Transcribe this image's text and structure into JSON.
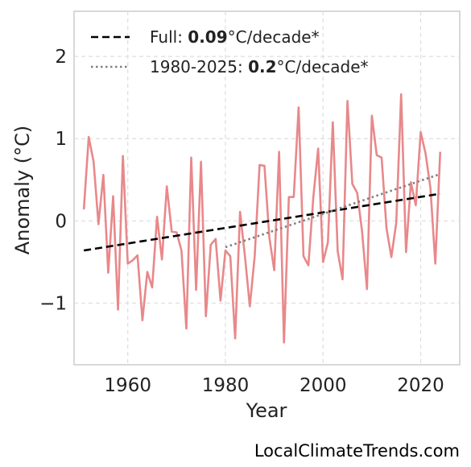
{
  "chart_data": {
    "type": "line",
    "xlabel": "Year",
    "ylabel": "Anomaly (°C)",
    "xlim": [
      1949,
      2028
    ],
    "ylim": [
      -1.75,
      2.55
    ],
    "xticks": [
      1960,
      1980,
      2000,
      2020
    ],
    "yticks": [
      -1,
      0,
      1,
      2
    ],
    "ytick_labels": [
      "−1",
      "0",
      "1",
      "2"
    ],
    "grid": true,
    "legend_position": "top-left",
    "series": [
      {
        "kind": "data",
        "color": "#e8888a",
        "x": [
          1951,
          1952,
          1953,
          1954,
          1955,
          1956,
          1957,
          1958,
          1959,
          1960,
          1961,
          1962,
          1963,
          1964,
          1965,
          1966,
          1967,
          1968,
          1969,
          1970,
          1971,
          1972,
          1973,
          1974,
          1975,
          1976,
          1977,
          1978,
          1979,
          1980,
          1981,
          1982,
          1983,
          1984,
          1985,
          1986,
          1987,
          1988,
          1989,
          1990,
          1991,
          1992,
          1993,
          1994,
          1995,
          1996,
          1997,
          1998,
          1999,
          2000,
          2001,
          2002,
          2003,
          2004,
          2005,
          2006,
          2007,
          2008,
          2009,
          2010,
          2011,
          2012,
          2013,
          2014,
          2015,
          2016,
          2017,
          2018,
          2019,
          2020,
          2021,
          2022,
          2023,
          2024
        ],
        "y": [
          0.14,
          1.02,
          0.72,
          -0.04,
          0.56,
          -0.63,
          0.3,
          -1.08,
          0.79,
          -0.52,
          -0.48,
          -0.42,
          -1.21,
          -0.62,
          -0.81,
          0.05,
          -0.47,
          0.42,
          -0.13,
          -0.14,
          -0.36,
          -1.31,
          0.77,
          -0.84,
          0.72,
          -1.16,
          -0.29,
          -0.22,
          -0.97,
          -0.36,
          -0.43,
          -1.43,
          0.11,
          -0.43,
          -1.04,
          -0.43,
          0.68,
          0.67,
          -0.2,
          -0.6,
          0.84,
          -1.48,
          0.29,
          0.29,
          1.38,
          -0.43,
          -0.54,
          0.28,
          0.88,
          -0.5,
          -0.26,
          1.2,
          -0.37,
          -0.71,
          1.46,
          0.45,
          0.34,
          -0.13,
          -0.83,
          1.28,
          0.8,
          0.77,
          -0.09,
          -0.44,
          -0.02,
          1.54,
          -0.38,
          0.47,
          0.19,
          1.08,
          0.82,
          0.4,
          -0.52,
          0.84
        ]
      },
      {
        "kind": "trend",
        "name": "Full",
        "color": "#000000",
        "dash": "dashed",
        "x": [
          1951,
          2024
        ],
        "y": [
          -0.36,
          0.33
        ]
      },
      {
        "kind": "trend",
        "name": "1980-2025",
        "color": "#808080",
        "dash": "dotted",
        "x": [
          1980,
          2024
        ],
        "y": [
          -0.32,
          0.57
        ]
      }
    ],
    "legend": [
      {
        "prefix": "Full: ",
        "value": "0.09",
        "suffix": "°C/decade*"
      },
      {
        "prefix": "1980-2025: ",
        "value": "0.2",
        "suffix": "°C/decade*"
      }
    ]
  },
  "watermark": "LocalClimateTrends.com"
}
